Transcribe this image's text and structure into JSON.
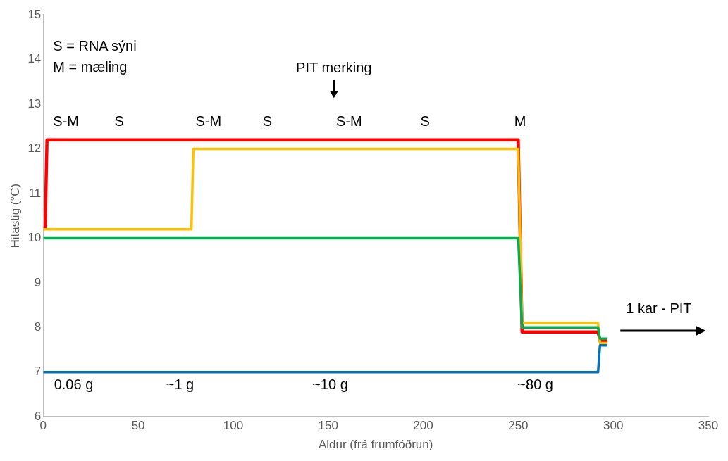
{
  "chart_data": {
    "type": "line",
    "xlabel": "Aldur (frá frumfóðrun)",
    "ylabel": "Hitastig (°C)",
    "xlim": [
      0,
      350
    ],
    "xticks": [
      0,
      50,
      100,
      150,
      200,
      250,
      300,
      350
    ],
    "ylim": [
      6,
      15
    ],
    "yticks": [
      6,
      7,
      8,
      9,
      10,
      11,
      12,
      13,
      14,
      15
    ],
    "grid": false,
    "legend": false,
    "marker": "none",
    "line_style": "solid",
    "series": [
      {
        "color": "#0070c0",
        "x": [
          0,
          292,
          293,
          297
        ],
        "values": [
          7.0,
          7.0,
          7.6,
          7.6
        ]
      },
      {
        "color": "#00b050",
        "x": [
          0,
          250,
          252,
          292,
          293,
          297
        ],
        "values": [
          10.0,
          10.0,
          8.0,
          8.0,
          7.75,
          7.75
        ]
      },
      {
        "color": "#ffc000",
        "x": [
          0,
          78,
          79,
          250,
          252,
          292,
          293,
          297
        ],
        "values": [
          10.2,
          10.2,
          12.0,
          12.0,
          8.1,
          8.1,
          7.65,
          7.65
        ]
      },
      {
        "color": "#ff0000",
        "x": [
          1,
          2,
          250,
          252,
          292,
          293,
          297
        ],
        "values": [
          10.2,
          12.2,
          12.2,
          7.9,
          7.9,
          7.7,
          7.7
        ]
      }
    ],
    "annotations": [
      "S = RNA sýni",
      "M = mæling",
      "S-M",
      "S",
      "S-M",
      "S",
      "S-M",
      "S",
      "M",
      "PIT merking",
      "1 kar - PIT",
      "0.06 g",
      "~1 g",
      "~10 g",
      "~80 g"
    ]
  }
}
